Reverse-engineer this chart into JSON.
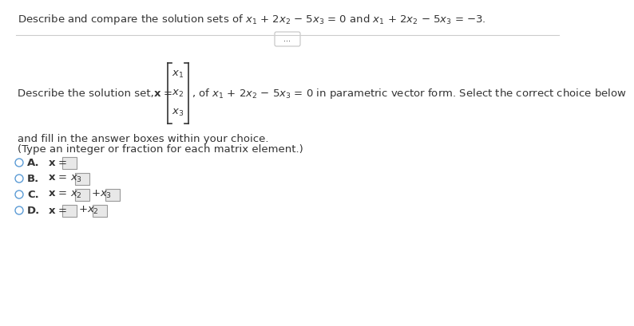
{
  "bg": "#ffffff",
  "tc": "#333333",
  "bc": "#5b9bd5",
  "gray": "#aaaaaa",
  "fs": 9.5,
  "fs_title": 9.5,
  "title": "Describe and compare the solution sets of $x_1$ + $2x_2$ − $5x_3$ = 0 and $x_1$ + $2x_2$ − $5x_3$ = −3.",
  "describe_pre": "Describe the solution set,  ",
  "x_eq": "$\\mathbf{x}$ =",
  "describe_post": ", of $x_1 + 2x_2 - 5x_3 = 0$ in parametric vector form. Select the correct choice below",
  "and_fill": "and fill in the answer boxes within your choice.",
  "type_note": "(Type an integer or fraction for each matrix element.)",
  "dots": "..."
}
